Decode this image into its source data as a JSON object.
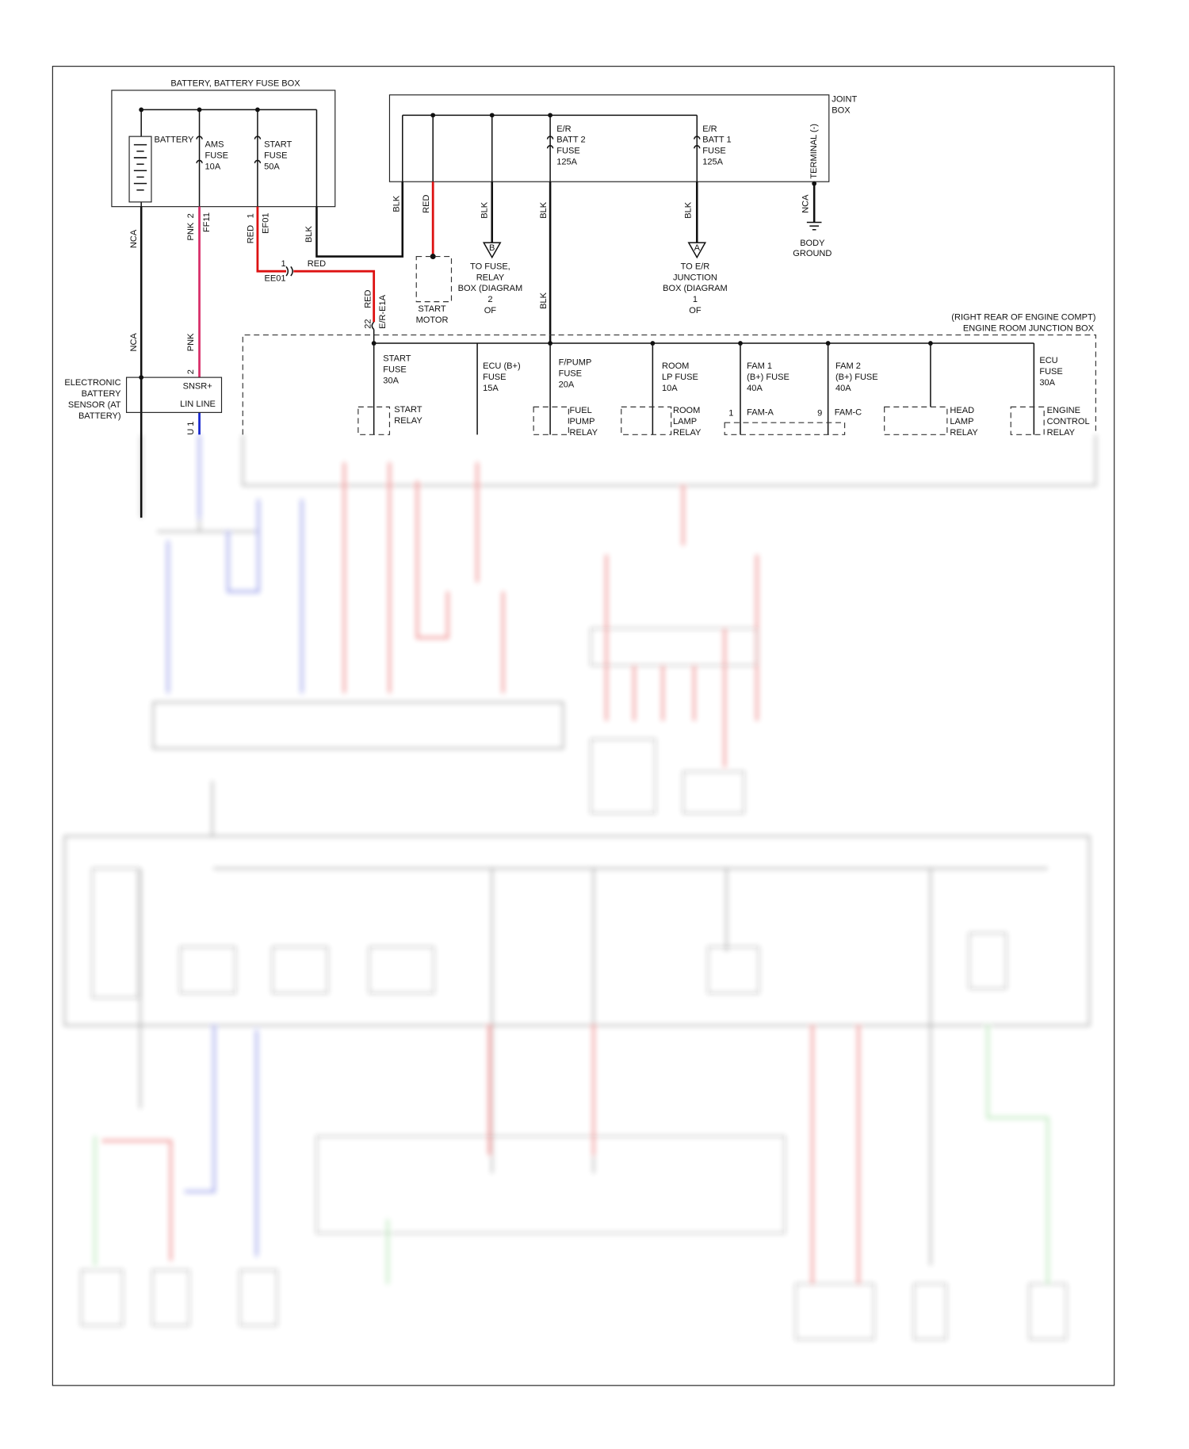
{
  "battery_fuse_box": {
    "title": "BATTERY, BATTERY FUSE BOX",
    "battery": "BATTERY",
    "ams_fuse": [
      "AMS",
      "FUSE",
      "10A"
    ],
    "start_fuse": [
      "START",
      "FUSE",
      "50A"
    ]
  },
  "joint_box": {
    "title": [
      "JOINT",
      "BOX"
    ],
    "batt2_fuse": [
      "E/R",
      "BATT 2",
      "FUSE",
      "125A"
    ],
    "batt1_fuse": [
      "E/R",
      "BATT 1",
      "FUSE",
      "125A"
    ],
    "terminal": "TERMINAL (-)"
  },
  "wire_labels": [
    "NCA",
    "PNK",
    "2",
    "FF11",
    "RED",
    "1",
    "EF01",
    "BLK",
    "BLK",
    "RED",
    "BLK",
    "BLK",
    "BLK",
    "NCA",
    "1",
    "RED",
    "EE01",
    "RED",
    "22",
    "E/R-E1A",
    "BLK",
    "NCA",
    "PNK",
    "2",
    "U 1"
  ],
  "markers": [
    "B",
    "A"
  ],
  "body_ground": [
    "BODY",
    "GROUND"
  ],
  "to_fuse_relay_box": [
    "TO FUSE,",
    "RELAY",
    "BOX (DIAGRAM",
    "2",
    "OF"
  ],
  "to_er_junction_box": [
    "TO E/R",
    "JUNCTION",
    "BOX (DIAGRAM",
    "1",
    "OF"
  ],
  "start_motor": [
    "START",
    "MOTOR"
  ],
  "battery_sensor": {
    "title": [
      "ELECTRONIC",
      "BATTERY",
      "SENSOR (AT",
      "BATTERY)"
    ],
    "pins": [
      "SNSR+",
      "LIN LINE"
    ]
  },
  "engine_room_junction_box": {
    "location": "(RIGHT REAR OF ENGINE COMPT)",
    "title": "ENGINE ROOM JUNCTION BOX",
    "fuses": [
      [
        "START",
        "FUSE",
        "30A"
      ],
      [
        "ECU (B+)",
        "FUSE",
        "15A"
      ],
      [
        "F/PUMP",
        "FUSE",
        "20A"
      ],
      [
        "ROOM",
        "LP FUSE",
        "10A"
      ],
      [
        "FAM 1",
        "(B+) FUSE",
        "40A"
      ],
      [
        "FAM 2",
        "(B+) FUSE",
        "40A"
      ],
      [
        "ECU",
        "FUSE",
        "30A"
      ]
    ],
    "relays": [
      [
        "START",
        "RELAY"
      ],
      [
        "FUEL",
        "PUMP",
        "RELAY"
      ],
      [
        "ROOM",
        "LAMP",
        "RELAY"
      ],
      [
        "HEAD",
        "LAMP",
        "RELAY"
      ],
      [
        "ENGINE",
        "CONTROL",
        "RELAY"
      ]
    ],
    "pins": [
      "1",
      "FAM-A",
      "9",
      "FAM-C"
    ]
  }
}
